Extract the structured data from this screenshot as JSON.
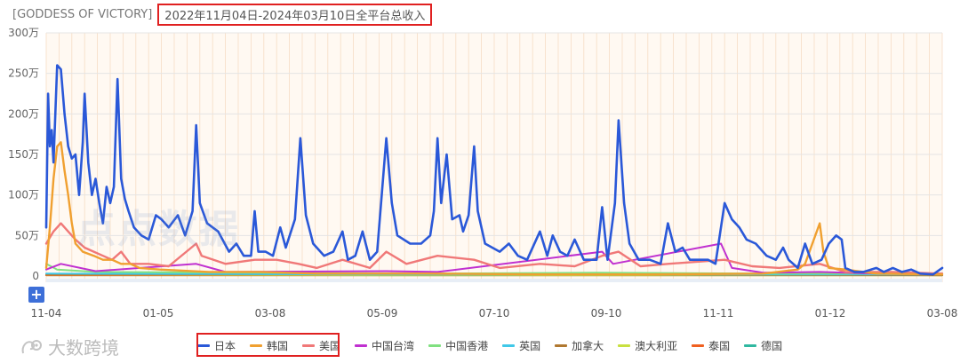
{
  "header": {
    "app_title": "[GODDESS OF VICTORY]",
    "range_title": "2022年11月04日-2024年03月10日全平台总收入"
  },
  "watermark": {
    "text": "点点数据"
  },
  "footer": {
    "brand": "大数跨境"
  },
  "controls": {
    "plus_label": "+"
  },
  "chart_data": {
    "type": "line",
    "title": "2022年11月04日-2024年03月10日全平台总收入",
    "xlabel": "",
    "ylabel": "",
    "x_ticks": [
      "11-04",
      "01-05",
      "03-08",
      "05-09",
      "07-10",
      "09-10",
      "11-11",
      "01-12",
      "03-08"
    ],
    "y_ticks": [
      "0",
      "50万",
      "100万",
      "150万",
      "200万",
      "250万",
      "300万"
    ],
    "ylim": [
      0,
      300
    ],
    "y_unit": "万",
    "x_range": [
      "2022-11-04",
      "2024-03-08"
    ],
    "legend_position": "bottom",
    "grid": true,
    "series": [
      {
        "name": "日本",
        "color": "#2a58d8",
        "points": [
          [
            "2022-11-04",
            60
          ],
          [
            "2022-11-05",
            225
          ],
          [
            "2022-11-06",
            160
          ],
          [
            "2022-11-07",
            180
          ],
          [
            "2022-11-08",
            140
          ],
          [
            "2022-11-10",
            260
          ],
          [
            "2022-11-12",
            255
          ],
          [
            "2022-11-14",
            200
          ],
          [
            "2022-11-16",
            160
          ],
          [
            "2022-11-18",
            145
          ],
          [
            "2022-11-20",
            150
          ],
          [
            "2022-11-22",
            100
          ],
          [
            "2022-11-24",
            165
          ],
          [
            "2022-11-25",
            225
          ],
          [
            "2022-11-27",
            140
          ],
          [
            "2022-11-29",
            100
          ],
          [
            "2022-12-01",
            120
          ],
          [
            "2022-12-03",
            90
          ],
          [
            "2022-12-05",
            65
          ],
          [
            "2022-12-07",
            110
          ],
          [
            "2022-12-09",
            90
          ],
          [
            "2022-12-11",
            110
          ],
          [
            "2022-12-13",
            243
          ],
          [
            "2022-12-15",
            120
          ],
          [
            "2022-12-17",
            95
          ],
          [
            "2022-12-19",
            80
          ],
          [
            "2022-12-22",
            60
          ],
          [
            "2022-12-26",
            50
          ],
          [
            "2022-12-30",
            45
          ],
          [
            "2023-01-03",
            75
          ],
          [
            "2023-01-06",
            70
          ],
          [
            "2023-01-10",
            60
          ],
          [
            "2023-01-15",
            75
          ],
          [
            "2023-01-19",
            50
          ],
          [
            "2023-01-23",
            80
          ],
          [
            "2023-01-25",
            186
          ],
          [
            "2023-01-27",
            90
          ],
          [
            "2023-01-31",
            65
          ],
          [
            "2023-02-06",
            55
          ],
          [
            "2023-02-12",
            30
          ],
          [
            "2023-02-16",
            40
          ],
          [
            "2023-02-20",
            25
          ],
          [
            "2023-02-24",
            25
          ],
          [
            "2023-02-26",
            80
          ],
          [
            "2023-02-28",
            30
          ],
          [
            "2023-03-04",
            30
          ],
          [
            "2023-03-08",
            25
          ],
          [
            "2023-03-12",
            60
          ],
          [
            "2023-03-15",
            35
          ],
          [
            "2023-03-20",
            70
          ],
          [
            "2023-03-23",
            170
          ],
          [
            "2023-03-26",
            75
          ],
          [
            "2023-03-30",
            40
          ],
          [
            "2023-04-05",
            25
          ],
          [
            "2023-04-10",
            30
          ],
          [
            "2023-04-15",
            55
          ],
          [
            "2023-04-18",
            20
          ],
          [
            "2023-04-22",
            25
          ],
          [
            "2023-04-26",
            55
          ],
          [
            "2023-04-30",
            20
          ],
          [
            "2023-05-04",
            30
          ],
          [
            "2023-05-09",
            170
          ],
          [
            "2023-05-12",
            90
          ],
          [
            "2023-05-15",
            50
          ],
          [
            "2023-05-22",
            40
          ],
          [
            "2023-05-28",
            40
          ],
          [
            "2023-06-02",
            50
          ],
          [
            "2023-06-04",
            80
          ],
          [
            "2023-06-06",
            170
          ],
          [
            "2023-06-08",
            90
          ],
          [
            "2023-06-11",
            150
          ],
          [
            "2023-06-14",
            70
          ],
          [
            "2023-06-18",
            75
          ],
          [
            "2023-06-20",
            55
          ],
          [
            "2023-06-23",
            75
          ],
          [
            "2023-06-26",
            160
          ],
          [
            "2023-06-28",
            80
          ],
          [
            "2023-07-02",
            40
          ],
          [
            "2023-07-10",
            30
          ],
          [
            "2023-07-15",
            40
          ],
          [
            "2023-07-20",
            25
          ],
          [
            "2023-07-25",
            20
          ],
          [
            "2023-08-01",
            55
          ],
          [
            "2023-08-05",
            25
          ],
          [
            "2023-08-08",
            50
          ],
          [
            "2023-08-12",
            30
          ],
          [
            "2023-08-16",
            25
          ],
          [
            "2023-08-20",
            45
          ],
          [
            "2023-08-25",
            20
          ],
          [
            "2023-09-01",
            20
          ],
          [
            "2023-09-04",
            85
          ],
          [
            "2023-09-07",
            20
          ],
          [
            "2023-09-11",
            90
          ],
          [
            "2023-09-13",
            192
          ],
          [
            "2023-09-16",
            90
          ],
          [
            "2023-09-19",
            40
          ],
          [
            "2023-09-24",
            20
          ],
          [
            "2023-09-30",
            20
          ],
          [
            "2023-10-06",
            15
          ],
          [
            "2023-10-10",
            65
          ],
          [
            "2023-10-14",
            30
          ],
          [
            "2023-10-18",
            35
          ],
          [
            "2023-10-22",
            20
          ],
          [
            "2023-11-01",
            20
          ],
          [
            "2023-11-05",
            15
          ],
          [
            "2023-11-10",
            90
          ],
          [
            "2023-11-14",
            70
          ],
          [
            "2023-11-18",
            60
          ],
          [
            "2023-11-22",
            45
          ],
          [
            "2023-11-27",
            40
          ],
          [
            "2023-12-03",
            25
          ],
          [
            "2023-12-08",
            20
          ],
          [
            "2023-12-12",
            35
          ],
          [
            "2023-12-15",
            20
          ],
          [
            "2023-12-20",
            10
          ],
          [
            "2023-12-24",
            40
          ],
          [
            "2023-12-28",
            15
          ],
          [
            "2024-01-02",
            20
          ],
          [
            "2024-01-06",
            40
          ],
          [
            "2024-01-10",
            50
          ],
          [
            "2024-01-13",
            45
          ],
          [
            "2024-01-15",
            10
          ],
          [
            "2024-01-20",
            5
          ],
          [
            "2024-01-25",
            5
          ],
          [
            "2024-02-01",
            10
          ],
          [
            "2024-02-05",
            5
          ],
          [
            "2024-02-10",
            10
          ],
          [
            "2024-02-15",
            5
          ],
          [
            "2024-02-20",
            8
          ],
          [
            "2024-02-25",
            3
          ],
          [
            "2024-03-03",
            2
          ],
          [
            "2024-03-08",
            10
          ]
        ]
      },
      {
        "name": "韩国",
        "color": "#f0a030",
        "points": [
          [
            "2022-11-04",
            10
          ],
          [
            "2022-11-06",
            60
          ],
          [
            "2022-11-08",
            120
          ],
          [
            "2022-11-10",
            160
          ],
          [
            "2022-11-12",
            165
          ],
          [
            "2022-11-14",
            130
          ],
          [
            "2022-11-16",
            100
          ],
          [
            "2022-11-18",
            65
          ],
          [
            "2022-11-20",
            40
          ],
          [
            "2022-11-24",
            30
          ],
          [
            "2022-11-30",
            25
          ],
          [
            "2022-12-05",
            20
          ],
          [
            "2022-12-10",
            20
          ],
          [
            "2022-12-15",
            15
          ],
          [
            "2022-12-20",
            15
          ],
          [
            "2022-12-25",
            10
          ],
          [
            "2023-01-05",
            8
          ],
          [
            "2023-02-01",
            5
          ],
          [
            "2023-03-01",
            5
          ],
          [
            "2023-04-01",
            3
          ],
          [
            "2023-06-01",
            3
          ],
          [
            "2023-08-01",
            2
          ],
          [
            "2023-10-01",
            2
          ],
          [
            "2023-12-01",
            3
          ],
          [
            "2023-12-20",
            8
          ],
          [
            "2023-12-24",
            15
          ],
          [
            "2023-12-28",
            40
          ],
          [
            "2024-01-01",
            65
          ],
          [
            "2024-01-03",
            30
          ],
          [
            "2024-01-06",
            10
          ],
          [
            "2024-01-15",
            8
          ],
          [
            "2024-02-01",
            3
          ],
          [
            "2024-03-08",
            2
          ]
        ]
      },
      {
        "name": "美国",
        "color": "#f07878",
        "points": [
          [
            "2022-11-04",
            40
          ],
          [
            "2022-11-08",
            55
          ],
          [
            "2022-11-12",
            65
          ],
          [
            "2022-11-16",
            55
          ],
          [
            "2022-11-20",
            45
          ],
          [
            "2022-11-25",
            35
          ],
          [
            "2022-11-30",
            30
          ],
          [
            "2022-12-05",
            25
          ],
          [
            "2022-12-10",
            20
          ],
          [
            "2022-12-15",
            30
          ],
          [
            "2022-12-20",
            15
          ],
          [
            "2022-12-30",
            15
          ],
          [
            "2023-01-10",
            12
          ],
          [
            "2023-01-25",
            40
          ],
          [
            "2023-01-28",
            25
          ],
          [
            "2023-02-10",
            15
          ],
          [
            "2023-02-26",
            20
          ],
          [
            "2023-03-10",
            20
          ],
          [
            "2023-03-22",
            15
          ],
          [
            "2023-04-01",
            10
          ],
          [
            "2023-04-15",
            20
          ],
          [
            "2023-04-30",
            10
          ],
          [
            "2023-05-09",
            30
          ],
          [
            "2023-05-20",
            15
          ],
          [
            "2023-06-06",
            25
          ],
          [
            "2023-06-26",
            20
          ],
          [
            "2023-07-10",
            10
          ],
          [
            "2023-08-01",
            15
          ],
          [
            "2023-08-20",
            12
          ],
          [
            "2023-09-04",
            25
          ],
          [
            "2023-09-13",
            30
          ],
          [
            "2023-09-25",
            12
          ],
          [
            "2023-10-10",
            15
          ],
          [
            "2023-11-10",
            20
          ],
          [
            "2023-11-25",
            12
          ],
          [
            "2023-12-10",
            10
          ],
          [
            "2024-01-01",
            15
          ],
          [
            "2024-01-15",
            5
          ],
          [
            "2024-02-10",
            5
          ],
          [
            "2024-03-08",
            3
          ]
        ]
      },
      {
        "name": "中国台湾",
        "color": "#c030d0",
        "points": [
          [
            "2022-11-04",
            8
          ],
          [
            "2022-11-12",
            15
          ],
          [
            "2022-12-01",
            6
          ],
          [
            "2023-01-25",
            15
          ],
          [
            "2023-02-10",
            5
          ],
          [
            "2023-05-09",
            6
          ],
          [
            "2023-06-06",
            5
          ],
          [
            "2023-09-04",
            30
          ],
          [
            "2023-09-10",
            15
          ],
          [
            "2023-11-08",
            40
          ],
          [
            "2023-11-14",
            10
          ],
          [
            "2023-12-01",
            4
          ],
          [
            "2024-01-01",
            5
          ],
          [
            "2024-02-01",
            3
          ],
          [
            "2024-03-08",
            3
          ]
        ]
      },
      {
        "name": "中国香港",
        "color": "#80e080",
        "points": [
          [
            "2022-11-04",
            15
          ],
          [
            "2022-11-10",
            8
          ],
          [
            "2022-12-01",
            5
          ],
          [
            "2023-03-01",
            4
          ],
          [
            "2023-06-01",
            3
          ],
          [
            "2023-09-01",
            4
          ],
          [
            "2023-12-01",
            3
          ],
          [
            "2024-03-08",
            3
          ]
        ]
      },
      {
        "name": "英国",
        "color": "#40c8e8",
        "points": [
          [
            "2022-11-04",
            3
          ],
          [
            "2023-05-01",
            2
          ],
          [
            "2024-03-08",
            2
          ]
        ]
      },
      {
        "name": "加拿大",
        "color": "#b07830",
        "points": [
          [
            "2022-11-04",
            2
          ],
          [
            "2023-05-01",
            2
          ],
          [
            "2024-03-08",
            1
          ]
        ]
      },
      {
        "name": "澳大利亚",
        "color": "#c8e040",
        "points": [
          [
            "2022-11-04",
            2
          ],
          [
            "2023-05-01",
            1
          ],
          [
            "2024-03-08",
            1
          ]
        ]
      },
      {
        "name": "泰国",
        "color": "#f06020",
        "points": [
          [
            "2022-11-04",
            1
          ],
          [
            "2024-03-08",
            1
          ]
        ]
      },
      {
        "name": "德国",
        "color": "#30b8a0",
        "points": [
          [
            "2022-11-04",
            1
          ],
          [
            "2024-03-08",
            1
          ]
        ]
      }
    ]
  }
}
